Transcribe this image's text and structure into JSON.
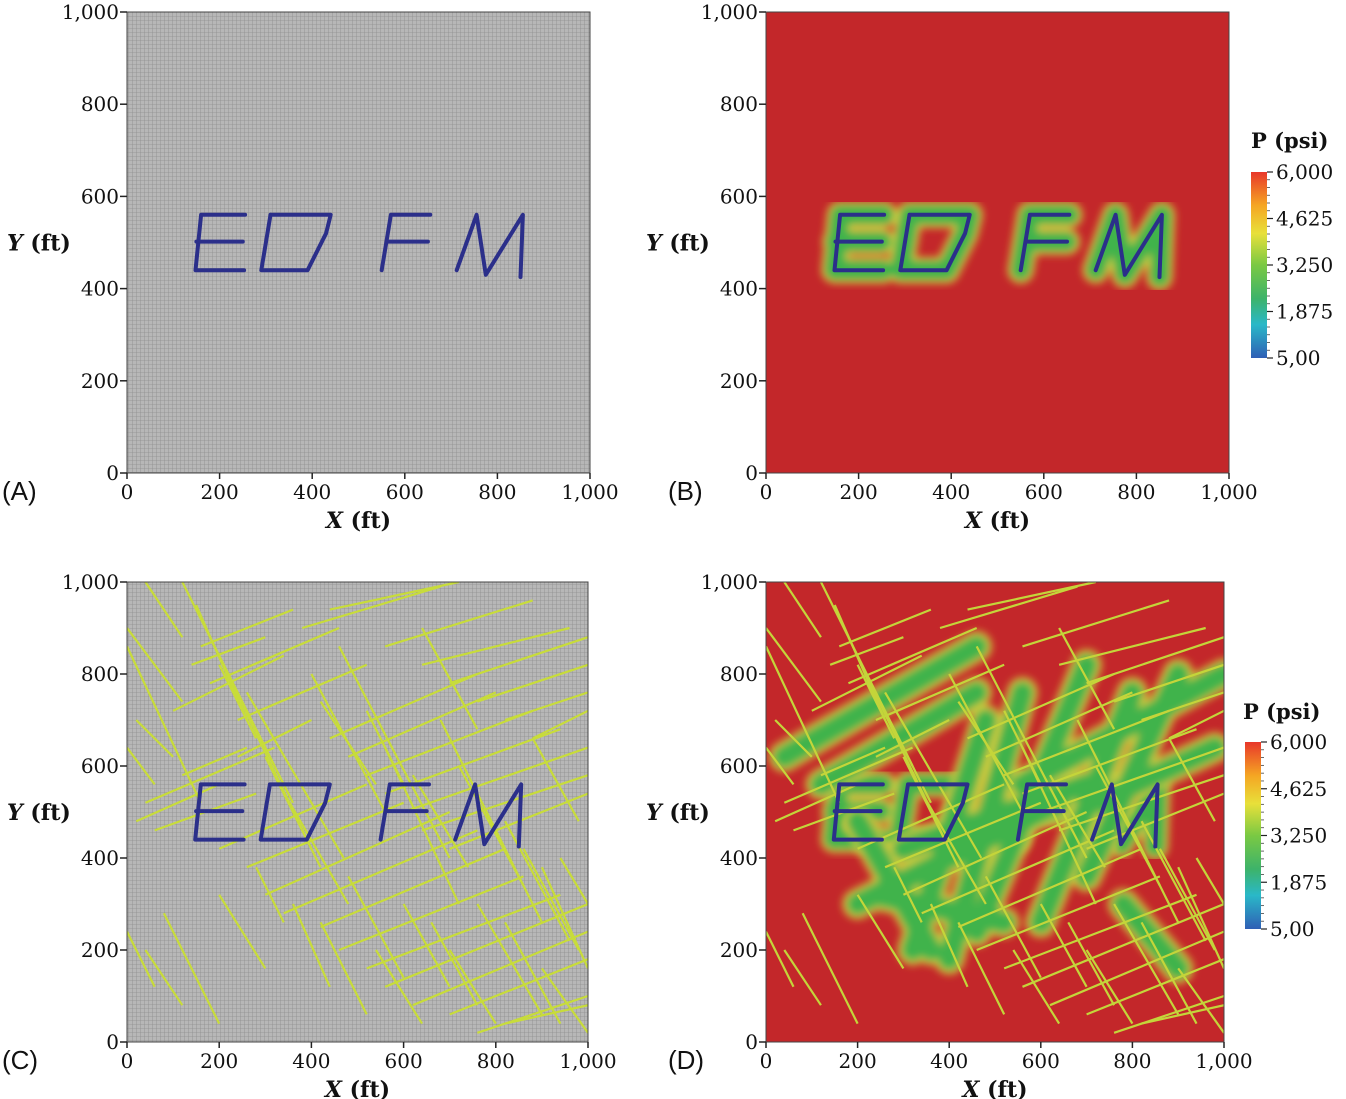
{
  "figure": {
    "panels": [
      {
        "letter": "(A)",
        "field": "grid",
        "fractures": false
      },
      {
        "letter": "(B)",
        "field": "pressure",
        "fractures": false
      },
      {
        "letter": "(C)",
        "field": "grid",
        "fractures": true
      },
      {
        "letter": "(D)",
        "field": "pressure",
        "fractures": true
      }
    ],
    "axes": {
      "x_label": "X (ft)",
      "y_label": "Y (ft)",
      "x_label_var": "X",
      "x_label_unit": " (ft)",
      "y_label_var": "Y",
      "y_label_unit": " (ft)",
      "x_ticks": [
        "0",
        "200",
        "400",
        "600",
        "800",
        "1,000"
      ],
      "y_ticks": [
        "0",
        "200",
        "400",
        "600",
        "800",
        "1,000"
      ],
      "x_range": [
        0,
        1000
      ],
      "y_range": [
        0,
        1000
      ]
    },
    "colorbar": {
      "title": "P (psi)",
      "ticks": [
        "6,000",
        "4,625",
        "3,250",
        "1,875",
        "5,00"
      ],
      "colors": [
        "#e8372a",
        "#f5a623",
        "#e8e03a",
        "#7ac943",
        "#3db36a",
        "#2ab8c8",
        "#2f5fb5"
      ]
    },
    "watermark_text": "EDFM",
    "colors": {
      "grid_bg": "#b4b4b4",
      "grid_line": "#8f8f8f",
      "pressure_bg": "#c3272a",
      "depleted": "#41b34c",
      "fracture_on_grid": "#c8dc3a",
      "fracture_on_pressure": "#c4d53a",
      "letter_stroke": "#2b2f8a"
    }
  }
}
